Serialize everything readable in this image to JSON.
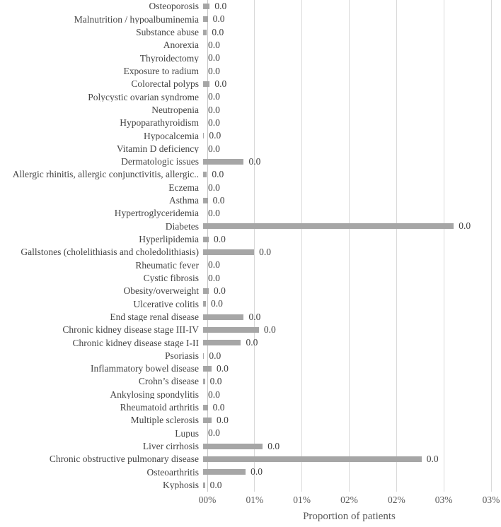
{
  "chart_data": {
    "type": "bar",
    "orientation": "horizontal",
    "title": "",
    "xlabel": "Proportion of patients",
    "ylabel": "",
    "x_axis_unit": "percent",
    "xlim_pct": [
      0,
      3
    ],
    "x_tick_values_pct": [
      0,
      0.5,
      1.0,
      1.5,
      2.0,
      2.5,
      3.0
    ],
    "x_tick_labels": [
      "00%",
      "01%",
      "01%",
      "02%",
      "02%",
      "03%",
      "03%"
    ],
    "grid": true,
    "legend": false,
    "bar_color": "#a6a6a6",
    "gridline_color": "#d9d9d9",
    "axis_line_color": "#c6c6c6",
    "label_color": "#444444",
    "data_label_text": "0.0",
    "categories": [
      "Osteoporosis",
      "Malnutrition / hypoalbuminemia",
      "Substance abuse",
      "Anorexia",
      "Thyroidectomy",
      "Exposure to radium",
      "Colorectal polyps",
      "Polycystic ovarian syndrome",
      "Neutropenia",
      "Hypoparathyroidism",
      "Hypocalcemia",
      "Vitamin D deficiency",
      "Dermatologic issues",
      "Allergic rhinitis, allergic conjunctivitis, allergic..",
      "Eczema",
      "Asthma",
      "Hypertroglyceridemia",
      "Diabetes",
      "Hyperlipidemia",
      "Gallstones (cholelithiasis and choledolithiasis)",
      "Rheumatic fever",
      "Cystic fibrosis",
      "Obesity/overweight",
      "Ulcerative colitis",
      "End stage renal disease",
      "Chronic kidney disease stage III-IV",
      "Chronic kidney disease stage I-II",
      "Psoriasis",
      "Inflammatory bowel disease",
      "Crohn’s disease",
      "Ankylosing spondylitis",
      "Rheumatoid arthritis",
      "Multiple sclerosis",
      "Lupus",
      "Liver cirrhosis",
      "Chronic obstructive pulmonary disease",
      "Osteoarthritis",
      "Kyphosis"
    ],
    "values_pct": [
      0.07,
      0.05,
      0.04,
      0.0,
      0.0,
      0.0,
      0.07,
      0.0,
      0.0,
      0.0,
      0.01,
      0.0,
      0.43,
      0.04,
      0.0,
      0.05,
      0.0,
      2.65,
      0.06,
      0.54,
      0.0,
      0.0,
      0.06,
      0.03,
      0.43,
      0.59,
      0.4,
      0.01,
      0.09,
      0.02,
      0.0,
      0.05,
      0.09,
      0.0,
      0.63,
      2.31,
      0.45,
      0.02
    ],
    "data_labels": [
      "0.0",
      "0.0",
      "0.0",
      "0.0",
      "0.0",
      "0.0",
      "0.0",
      "0.0",
      "0.0",
      "0.0",
      "0.0",
      "0.0",
      "0.0",
      "0.0",
      "0.0",
      "0.0",
      "0.0",
      "0.0",
      "0.0",
      "0.0",
      "0.0",
      "0.0",
      "0.0",
      "0.0",
      "0.0",
      "0.0",
      "0.0",
      "0.0",
      "0.0",
      "0.0",
      "0.0",
      "0.0",
      "0.0",
      "0.0",
      "0.0",
      "0.0",
      "0.0",
      "0.0"
    ]
  }
}
